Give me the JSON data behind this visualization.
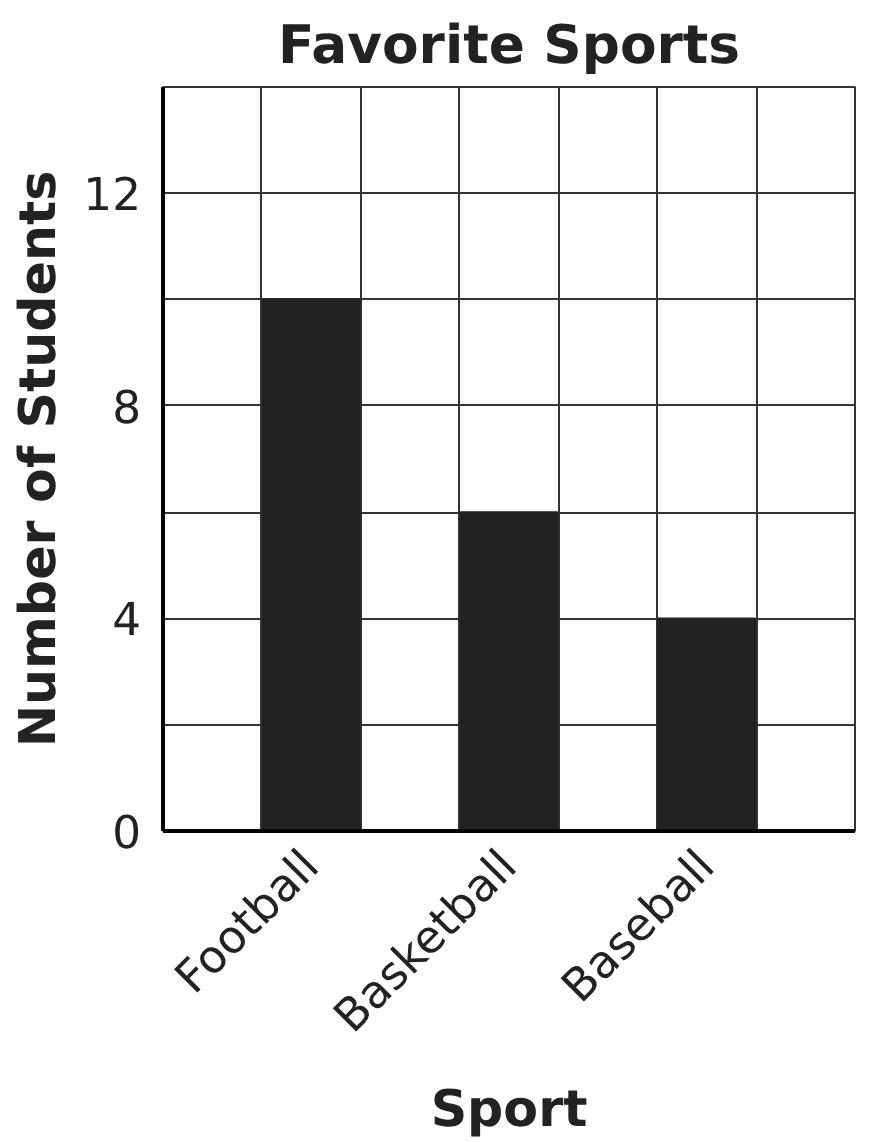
{
  "chart_data": {
    "type": "bar",
    "title": "Favorite Sports",
    "xlabel": "Sport",
    "ylabel": "Number of Students",
    "categories": [
      null,
      "Football",
      null,
      "Basketball",
      null,
      "Baseball",
      null
    ],
    "values": [
      null,
      10,
      null,
      6,
      null,
      4,
      null
    ],
    "color": "#222222",
    "ylim": [
      0,
      14
    ],
    "yticks": [
      0,
      {
        "value": 2,
        "label": null
      },
      4,
      {
        "value": 6,
        "label": null
      },
      8,
      {
        "value": 10,
        "label": null
      },
      12,
      {
        "value": 14,
        "label": null
      }
    ],
    "grid": true
  }
}
